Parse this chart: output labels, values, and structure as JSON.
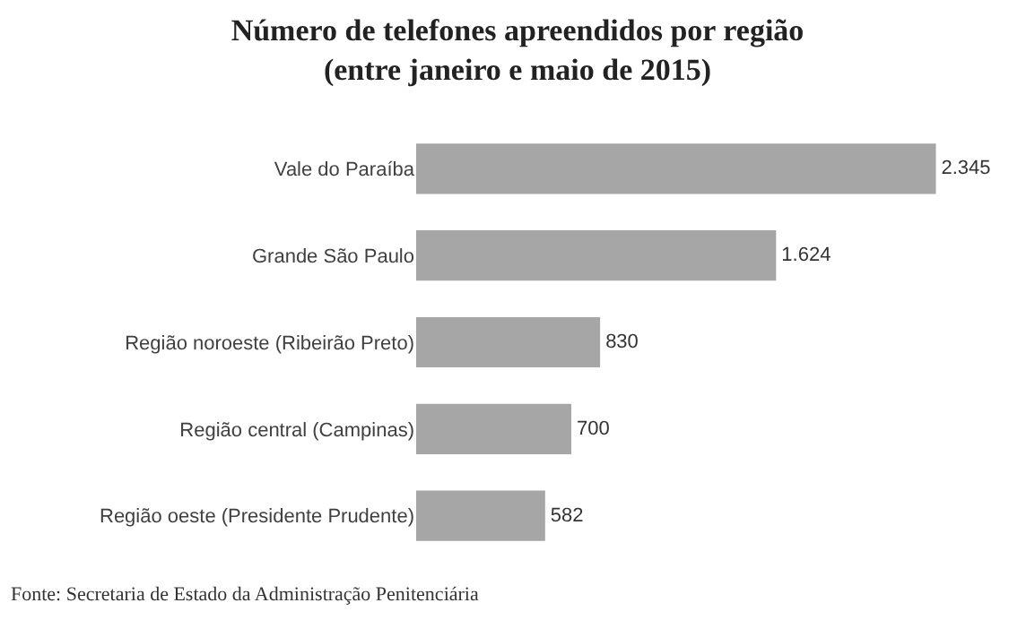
{
  "chart_data": {
    "type": "bar",
    "orientation": "horizontal",
    "title": "Número de telefones apreendidos por região\n(entre janeiro e maio de 2015)",
    "categories": [
      "Vale do Paraíba",
      "Grande São Paulo",
      "Região noroeste (Ribeirão Preto)",
      "Região central (Campinas)",
      "Região oeste (Presidente Prudente)"
    ],
    "values": [
      2345,
      1624,
      830,
      700,
      582
    ],
    "value_labels": [
      "2.345",
      "1.624",
      "830",
      "700",
      "582"
    ],
    "color": "#a6a6a6",
    "legend": false,
    "tick_labels": "y",
    "annotations": [
      "Fonte: Secretaria de Estado da Administração Penitenciária"
    ]
  }
}
